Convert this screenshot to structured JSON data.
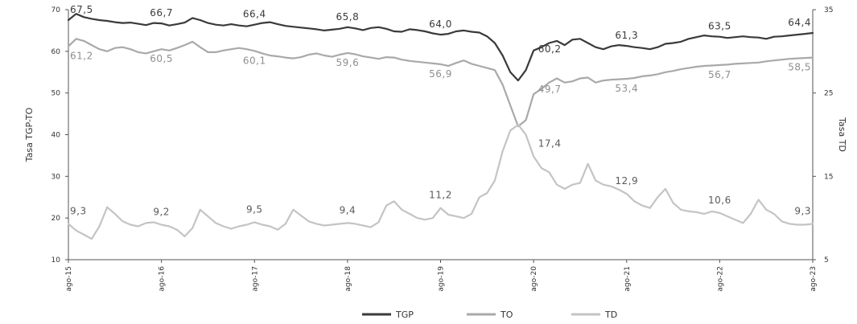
{
  "chart_data": {
    "type": "line",
    "title": "",
    "xlabel": "",
    "ylabel_left": "Tasa TGP-TO",
    "ylabel_right": "Tasa TD",
    "ylim_left": [
      10,
      70
    ],
    "ylim_right": [
      5,
      35
    ],
    "yticks_left": [
      10,
      20,
      30,
      40,
      50,
      60,
      70
    ],
    "yticks_right": [
      5,
      15,
      25,
      35
    ],
    "x_ticks": [
      "ago-15",
      "ago-16",
      "ago-17",
      "ago-18",
      "ago-19",
      "ago-20",
      "ago-21",
      "ago-22",
      "ago-23"
    ],
    "x_tick_index": [
      0,
      12,
      24,
      36,
      48,
      60,
      72,
      84,
      96
    ],
    "legend_position": "bottom",
    "grid": false,
    "series": [
      {
        "name": "TGP",
        "axis": "left",
        "color": "#3a3a3a",
        "values": [
          67.5,
          69,
          68.2,
          67.8,
          67.5,
          67.3,
          67,
          66.8,
          66.9,
          66.6,
          66.3,
          66.8,
          66.7,
          66.2,
          66.5,
          66.9,
          68,
          67.5,
          66.8,
          66.4,
          66.2,
          66.5,
          66.2,
          66,
          66.4,
          66.8,
          67,
          66.5,
          66.1,
          65.9,
          65.7,
          65.5,
          65.3,
          65,
          65.2,
          65.4,
          65.8,
          65.5,
          65.1,
          65.6,
          65.8,
          65.4,
          64.8,
          64.7,
          65.3,
          65.1,
          64.8,
          64.3,
          64,
          64.2,
          64.8,
          65,
          64.7,
          64.5,
          63.6,
          62,
          59,
          55,
          53,
          55.5,
          60.2,
          61,
          62,
          62.5,
          61.5,
          62.8,
          63,
          62,
          61,
          60.5,
          61.2,
          61.5,
          61.3,
          61,
          60.8,
          60.5,
          61,
          61.8,
          62,
          62.3,
          63,
          63.4,
          63.8,
          63.6,
          63.5,
          63.2,
          63.4,
          63.6,
          63.4,
          63.3,
          63,
          63.5,
          63.6,
          63.8,
          64,
          64.2,
          64.4
        ],
        "labels": [
          {
            "i": 0,
            "text": "67,5"
          },
          {
            "i": 12,
            "text": "66,7"
          },
          {
            "i": 24,
            "text": "66,4"
          },
          {
            "i": 36,
            "text": "65,8"
          },
          {
            "i": 48,
            "text": "64,0"
          },
          {
            "i": 60,
            "text": "60,2"
          },
          {
            "i": 72,
            "text": "61,3"
          },
          {
            "i": 84,
            "text": "63,5"
          },
          {
            "i": 96,
            "text": "64,4"
          }
        ]
      },
      {
        "name": "TO",
        "axis": "left",
        "color": "#a9a9a9",
        "values": [
          61.2,
          63,
          62.5,
          61.5,
          60.5,
          60,
          60.8,
          61,
          60.5,
          59.8,
          59.5,
          60,
          60.5,
          60.2,
          60.8,
          61.5,
          62.3,
          61,
          59.8,
          59.8,
          60.2,
          60.5,
          60.8,
          60.5,
          60.1,
          59.5,
          59,
          58.8,
          58.5,
          58.3,
          58.6,
          59.2,
          59.5,
          59,
          58.7,
          59.2,
          59.6,
          59.3,
          58.8,
          58.5,
          58.2,
          58.6,
          58.5,
          58,
          57.7,
          57.5,
          57.3,
          57.1,
          56.9,
          56.5,
          57.2,
          57.8,
          57,
          56.5,
          56,
          55.5,
          52,
          47,
          42,
          43.5,
          49.7,
          51,
          52.5,
          53.5,
          52.5,
          52.8,
          53.5,
          53.7,
          52.5,
          53,
          53.2,
          53.3,
          53.4,
          53.6,
          54,
          54.2,
          54.5,
          55,
          55.3,
          55.7,
          56,
          56.3,
          56.5,
          56.6,
          56.7,
          56.8,
          57,
          57.1,
          57.2,
          57.3,
          57.6,
          57.8,
          58,
          58.2,
          58.3,
          58.4,
          58.5
        ],
        "labels": [
          {
            "i": 0,
            "text": "61,2"
          },
          {
            "i": 12,
            "text": "60,5"
          },
          {
            "i": 24,
            "text": "60,1"
          },
          {
            "i": 36,
            "text": "59,6"
          },
          {
            "i": 48,
            "text": "56,9"
          },
          {
            "i": 60,
            "text": "49,7"
          },
          {
            "i": 72,
            "text": "53,4"
          },
          {
            "i": 84,
            "text": "56,7"
          },
          {
            "i": 96,
            "text": "58,5"
          }
        ]
      },
      {
        "name": "TD",
        "axis": "right",
        "color": "#c4c4c4",
        "values": [
          9.3,
          8.5,
          8,
          7.5,
          9,
          11.3,
          10.5,
          9.6,
          9.2,
          9,
          9.4,
          9.5,
          9.2,
          9,
          8.6,
          7.8,
          8.8,
          11,
          10.2,
          9.4,
          9,
          8.7,
          9,
          9.2,
          9.5,
          9.2,
          9,
          8.6,
          9.3,
          11,
          10.3,
          9.6,
          9.3,
          9.1,
          9.2,
          9.3,
          9.4,
          9.3,
          9.1,
          8.9,
          9.5,
          11.5,
          12,
          11,
          10.5,
          10,
          9.8,
          10,
          11.2,
          10.4,
          10.2,
          10,
          10.5,
          12.5,
          13,
          14.5,
          18,
          20.5,
          21.2,
          20,
          17.4,
          16,
          15.5,
          14,
          13.5,
          14,
          14.2,
          16.5,
          14.5,
          14,
          13.8,
          13.4,
          12.9,
          12,
          11.5,
          11.2,
          12.5,
          13.5,
          11.8,
          11,
          10.8,
          10.7,
          10.5,
          10.8,
          10.6,
          10.2,
          9.8,
          9.4,
          10.5,
          12.2,
          11,
          10.5,
          9.6,
          9.3,
          9.2,
          9.2,
          9.3
        ],
        "labels": [
          {
            "i": 0,
            "text": "9,3"
          },
          {
            "i": 12,
            "text": "9,2"
          },
          {
            "i": 24,
            "text": "9,5"
          },
          {
            "i": 36,
            "text": "9,4"
          },
          {
            "i": 48,
            "text": "11,2"
          },
          {
            "i": 60,
            "text": "17,4"
          },
          {
            "i": 72,
            "text": "12,9"
          },
          {
            "i": 84,
            "text": "10,6"
          },
          {
            "i": 96,
            "text": "9,3"
          }
        ]
      }
    ]
  }
}
